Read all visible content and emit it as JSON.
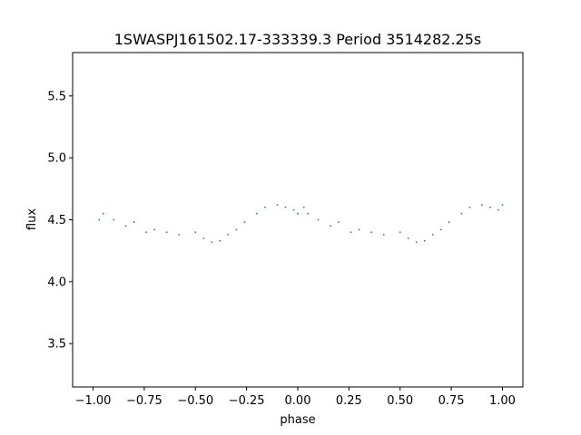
{
  "chart_data": {
    "type": "scatter",
    "title": "1SWASPJ161502.17-333339.3 Period 3514282.25s",
    "xlabel": "phase",
    "ylabel": "flux",
    "xlim": [
      -1.1,
      1.1
    ],
    "ylim": [
      3.15,
      5.85
    ],
    "xticks": [
      -1.0,
      -0.75,
      -0.5,
      -0.25,
      0.0,
      0.25,
      0.5,
      0.75,
      1.0
    ],
    "xtick_labels": [
      "−1.00",
      "−0.75",
      "−0.50",
      "−0.25",
      "0.00",
      "0.25",
      "0.50",
      "0.75",
      "1.00"
    ],
    "yticks": [
      3.5,
      4.0,
      4.5,
      5.0,
      5.5
    ],
    "ytick_labels": [
      "3.5",
      "4.0",
      "4.5",
      "5.0",
      "5.5"
    ],
    "grid": false,
    "marker_color": "#1f77b4",
    "series": [
      {
        "x": [
          -0.97,
          -0.95,
          -0.9,
          -0.84,
          -0.8,
          -0.74,
          -0.7,
          -0.64,
          -0.58,
          -0.5,
          -0.46,
          -0.42,
          -0.38,
          -0.34,
          -0.3,
          -0.26,
          -0.2,
          -0.16,
          -0.1,
          -0.06,
          -0.02,
          0.0,
          0.03,
          0.05,
          0.1,
          0.16,
          0.2,
          0.26,
          0.3,
          0.36,
          0.42,
          0.5,
          0.54,
          0.58,
          0.62,
          0.66,
          0.7,
          0.74,
          0.8,
          0.84,
          0.9,
          0.94,
          0.98,
          1.0
        ],
        "y": [
          4.5,
          4.55,
          4.5,
          4.45,
          4.48,
          4.4,
          4.42,
          4.4,
          4.38,
          4.4,
          4.35,
          4.32,
          4.33,
          4.38,
          4.42,
          4.48,
          4.55,
          4.6,
          4.62,
          4.6,
          4.58,
          4.55,
          4.6,
          4.55,
          4.5,
          4.45,
          4.48,
          4.4,
          4.42,
          4.4,
          4.38,
          4.4,
          4.35,
          4.32,
          4.33,
          4.38,
          4.42,
          4.48,
          4.55,
          4.6,
          4.62,
          4.6,
          4.58,
          4.62
        ]
      }
    ]
  }
}
